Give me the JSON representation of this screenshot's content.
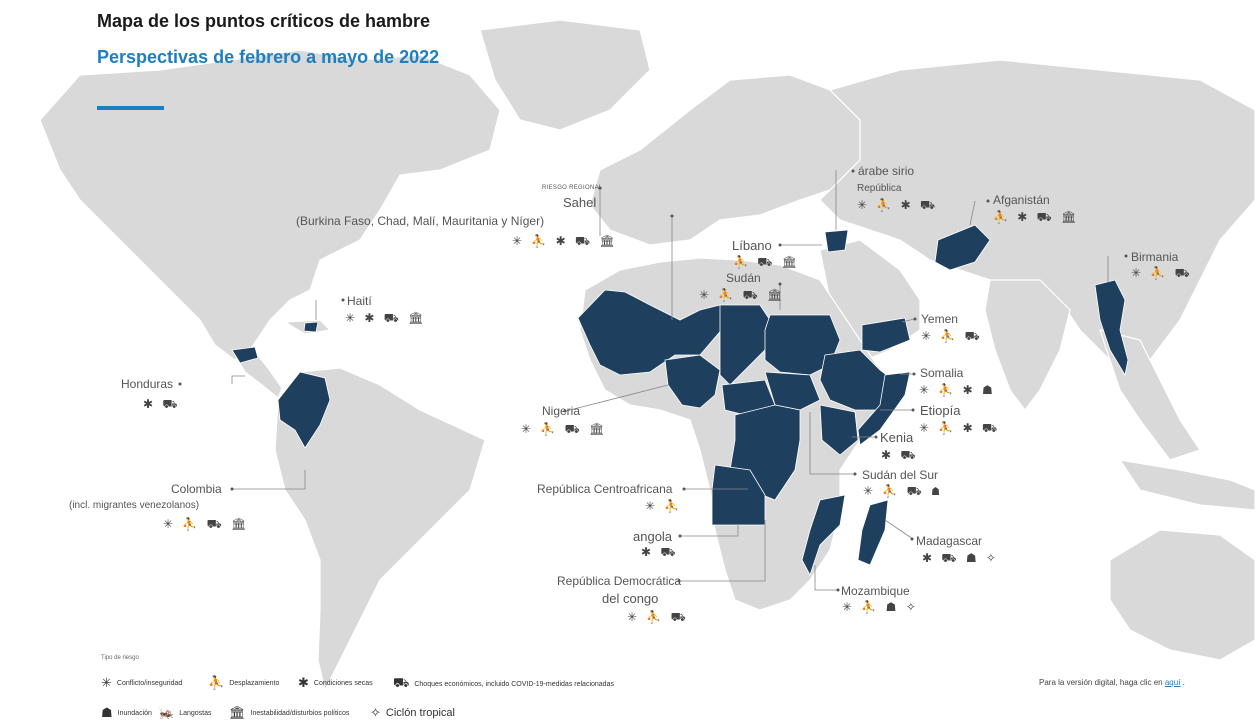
{
  "title": "Mapa de los puntos críticos de hambre",
  "subtitle": "Perspectivas de febrero a mayo de 2022",
  "colors": {
    "land": "#d9d9d9",
    "hotspot": "#1e3f5e",
    "accent": "#1d7fc1",
    "leader": "#888888"
  },
  "regional": {
    "tag": "RIESGO REGIONAL",
    "name": "Sahel",
    "detail": "(Burkina Faso, Chad, Malí, Mauritania y Níger)",
    "icons": "✳ ⛹ ✱ ⛟ 🏛"
  },
  "hotspots": [
    {
      "name": "Haití",
      "icons": "✳ ✱ ⛟ 🏛"
    },
    {
      "name": "Honduras",
      "icons": "✱ ⛟"
    },
    {
      "name": "Colombia",
      "note": "(incl. migrantes venezolanos)",
      "icons": "✳ ⛹ ⛟ 🏛"
    },
    {
      "name": "Líbano",
      "icons": "⛹ ⛟ 🏛"
    },
    {
      "name": "Sudán",
      "icons": "✳ ⛹ ⛟ 🏛"
    },
    {
      "name": "árabe sirio",
      "note": "República",
      "icons": "✳ ⛹ ✱ ⛟"
    },
    {
      "name": "Afganistán",
      "icons": "⛹ ✱ ⛟ 🏛"
    },
    {
      "name": "Birmania",
      "icons": "✳ ⛹ ⛟"
    },
    {
      "name": "Yemen",
      "icons": "✳ ⛹ ⛟"
    },
    {
      "name": "Somalia",
      "icons": "✳ ⛹ ✱ ☗"
    },
    {
      "name": "Etiopía",
      "icons": "✳ ⛹ ✱ ⛟"
    },
    {
      "name": "Kenia",
      "icons": "✱ ⛟"
    },
    {
      "name": "Sudán del Sur",
      "icons": "✳ ⛹ ⛟ ☗"
    },
    {
      "name": "Nigeria",
      "icons": "✳ ⛹ ⛟ 🏛"
    },
    {
      "name": "República Centroafricana",
      "icons": "✳ ⛹"
    },
    {
      "name": "angola",
      "icons": "✱ ⛟"
    },
    {
      "name": "República Democrática",
      "note": "del congo",
      "icons": "✳ ⛹ ⛟"
    },
    {
      "name": "Madagascar",
      "icons": "✱ ⛟ ☗ ✧"
    },
    {
      "name": "Mozambique",
      "icons": "✳ ⛹ ☗ ✧"
    }
  ],
  "legend": {
    "title": "Tipo de riesgo",
    "items": [
      {
        "icon": "✳",
        "label": "Conflicto/inseguridad"
      },
      {
        "icon": "⛹",
        "label": "Desplazamiento"
      },
      {
        "icon": "✱",
        "label": "Condiciones secas"
      },
      {
        "icon": "⛟",
        "label": "Choques económicos, incluido COVID-19-medidas relacionadas"
      },
      {
        "icon": "☗",
        "label": "Inundación"
      },
      {
        "icon": "🦗",
        "label": "Langostas"
      },
      {
        "icon": "🏛",
        "label": "Inestabilidad/disturbios políticos"
      },
      {
        "icon": "✧",
        "label": "Ciclón tropical"
      }
    ]
  },
  "footer": {
    "text": "Para la versión digital, haga clic en",
    "link": "aquí",
    "end": "."
  }
}
